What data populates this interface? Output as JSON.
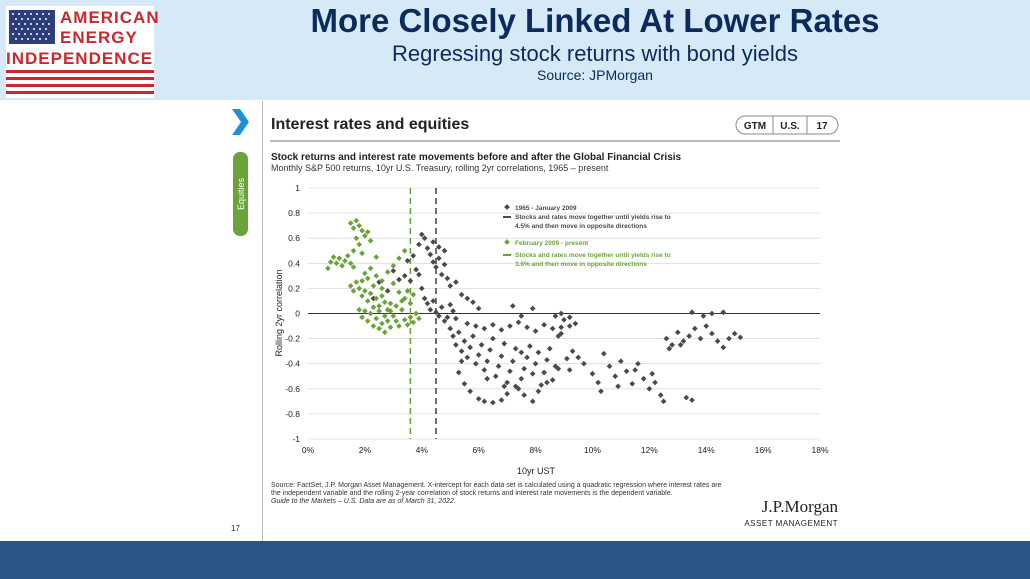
{
  "header": {
    "logo_line1": "AMERICAN",
    "logo_line2": "ENERGY",
    "logo_line3": "INDEPENDENCE",
    "title": "More Closely Linked At Lower Rates",
    "subtitle": "Regressing stock returns with bond yields",
    "source": "Source: JPMorgan"
  },
  "slide": {
    "heading": "Interest rates and equities",
    "tags": [
      "GTM",
      "U.S.",
      "17"
    ],
    "side_tab": "Equities",
    "chart_title": "Stock returns and interest rate movements before and after the Global Financial Crisis",
    "chart_subtitle": "Monthly S&P 500 returns, 10yr U.S. Treasury, rolling 2yr correlations, 1965 – present",
    "footnote1": "Source: FactSet, J.P. Morgan Asset Management. X-intercept for each data set is calculated using a quadratic regression where interest rates are",
    "footnote2": "the independent variable and the rolling 2-year correlation of stock returns and interest rate movements is the dependent variable.",
    "footnote3": "Guide to the Markets – U.S. Data are as of March 31, 2022.",
    "page_number": "17",
    "brand1": "J.P.Morgan",
    "brand2": "ASSET MANAGEMENT"
  },
  "colors": {
    "grey_series": "#4a4a4a",
    "green_series": "#6aa33a",
    "header_bg": "#d6e9f7",
    "title_color": "#0d2a5c",
    "footer_band": "#2a5686",
    "logo_red": "#c8282f",
    "chevron": "#1f8fd6"
  },
  "chart_data": {
    "type": "scatter",
    "xlabel": "10yr UST",
    "ylabel": "Rolling 2yr correlation",
    "xlim": [
      0,
      18
    ],
    "ylim": [
      -1,
      1
    ],
    "x_ticks": [
      "0%",
      "2%",
      "4%",
      "6%",
      "8%",
      "10%",
      "12%",
      "14%",
      "16%",
      "18%"
    ],
    "y_ticks": [
      "1",
      "0.8",
      "0.6",
      "0.4",
      "0.2",
      "0",
      "-0.2",
      "-0.4",
      "-0.6",
      "-0.8",
      "-1"
    ],
    "grid": true,
    "legend_position": "top-right",
    "vlines": [
      {
        "x": 3.6,
        "series": "February 2009 - present"
      },
      {
        "x": 4.5,
        "series": "1965 - January 2009"
      }
    ],
    "series": [
      {
        "name": "1965 - January 2009",
        "line_label_1": "Stocks and rates move together until yields rise to",
        "line_label_2": "4.5% and then move in opposite directions",
        "color": "#4a4a4a",
        "points": [
          [
            2.3,
            0.12
          ],
          [
            2.5,
            0.25
          ],
          [
            2.8,
            0.18
          ],
          [
            3.0,
            0.34
          ],
          [
            3.2,
            0.27
          ],
          [
            3.4,
            0.3
          ],
          [
            3.5,
            0.42
          ],
          [
            3.7,
            0.46
          ],
          [
            3.9,
            0.55
          ],
          [
            4.0,
            0.63
          ],
          [
            4.1,
            0.6
          ],
          [
            4.2,
            0.52
          ],
          [
            4.3,
            0.47
          ],
          [
            4.4,
            0.41
          ],
          [
            4.5,
            0.37
          ],
          [
            4.6,
            0.44
          ],
          [
            4.7,
            0.31
          ],
          [
            4.8,
            0.39
          ],
          [
            4.9,
            0.28
          ],
          [
            5.0,
            0.22
          ],
          [
            3.8,
            0.35
          ],
          [
            4.0,
            0.2
          ],
          [
            4.1,
            0.12
          ],
          [
            4.2,
            0.08
          ],
          [
            4.3,
            0.03
          ],
          [
            4.4,
            0.1
          ],
          [
            4.5,
            0.01
          ],
          [
            4.6,
            -0.02
          ],
          [
            4.7,
            0.05
          ],
          [
            4.8,
            -0.06
          ],
          [
            4.9,
            -0.03
          ],
          [
            5.0,
            0.07
          ],
          [
            5.1,
            0.02
          ],
          [
            5.2,
            -0.04
          ],
          [
            4.4,
            0.57
          ],
          [
            4.6,
            0.53
          ],
          [
            4.8,
            0.5
          ],
          [
            5.2,
            0.25
          ],
          [
            5.4,
            0.15
          ],
          [
            5.6,
            0.12
          ],
          [
            5.8,
            0.09
          ],
          [
            6.0,
            0.04
          ],
          [
            3.6,
            0.26
          ],
          [
            3.9,
            0.31
          ],
          [
            5.0,
            -0.12
          ],
          [
            5.1,
            -0.18
          ],
          [
            5.2,
            -0.25
          ],
          [
            5.3,
            -0.15
          ],
          [
            5.4,
            -0.3
          ],
          [
            5.5,
            -0.22
          ],
          [
            5.6,
            -0.35
          ],
          [
            5.7,
            -0.27
          ],
          [
            5.8,
            -0.18
          ],
          [
            5.9,
            -0.4
          ],
          [
            6.0,
            -0.33
          ],
          [
            6.1,
            -0.25
          ],
          [
            6.2,
            -0.45
          ],
          [
            6.3,
            -0.38
          ],
          [
            6.4,
            -0.29
          ],
          [
            6.5,
            -0.2
          ],
          [
            6.6,
            -0.5
          ],
          [
            6.7,
            -0.42
          ],
          [
            6.8,
            -0.34
          ],
          [
            6.9,
            -0.24
          ],
          [
            7.0,
            -0.55
          ],
          [
            7.1,
            -0.46
          ],
          [
            7.2,
            -0.38
          ],
          [
            7.3,
            -0.28
          ],
          [
            7.4,
            -0.6
          ],
          [
            7.5,
            -0.52
          ],
          [
            7.6,
            -0.44
          ],
          [
            7.7,
            -0.35
          ],
          [
            7.8,
            -0.26
          ],
          [
            7.9,
            -0.48
          ],
          [
            8.0,
            -0.4
          ],
          [
            8.1,
            -0.31
          ],
          [
            8.2,
            -0.57
          ],
          [
            8.3,
            -0.47
          ],
          [
            8.4,
            -0.37
          ],
          [
            8.5,
            -0.28
          ],
          [
            8.6,
            -0.53
          ],
          [
            8.7,
            -0.42
          ],
          [
            8.8,
            -0.18
          ],
          [
            8.9,
            -0.11
          ],
          [
            9.0,
            -0.05
          ],
          [
            9.1,
            -0.36
          ],
          [
            9.2,
            -0.45
          ],
          [
            9.3,
            -0.3
          ],
          [
            5.3,
            -0.47
          ],
          [
            5.5,
            -0.56
          ],
          [
            5.7,
            -0.62
          ],
          [
            6.0,
            -0.68
          ],
          [
            6.2,
            -0.7
          ],
          [
            6.5,
            -0.71
          ],
          [
            6.8,
            -0.69
          ],
          [
            7.0,
            -0.64
          ],
          [
            7.3,
            -0.58
          ],
          [
            7.6,
            -0.65
          ],
          [
            7.9,
            -0.7
          ],
          [
            8.1,
            -0.62
          ],
          [
            8.4,
            -0.55
          ],
          [
            5.6,
            -0.08
          ],
          [
            5.9,
            -0.1
          ],
          [
            6.2,
            -0.12
          ],
          [
            6.5,
            -0.09
          ],
          [
            6.8,
            -0.13
          ],
          [
            7.1,
            -0.1
          ],
          [
            7.4,
            -0.07
          ],
          [
            7.7,
            -0.11
          ],
          [
            8.0,
            -0.14
          ],
          [
            8.3,
            -0.09
          ],
          [
            8.6,
            -0.12
          ],
          [
            8.9,
            -0.16
          ],
          [
            9.2,
            -0.1
          ],
          [
            8.7,
            -0.02
          ],
          [
            8.9,
            0.0
          ],
          [
            9.2,
            -0.03
          ],
          [
            9.4,
            -0.08
          ],
          [
            7.2,
            0.06
          ],
          [
            7.5,
            -0.02
          ],
          [
            7.9,
            0.04
          ],
          [
            5.4,
            -0.38
          ],
          [
            6.3,
            -0.52
          ],
          [
            6.9,
            -0.58
          ],
          [
            7.5,
            -0.31
          ],
          [
            8.8,
            -0.44
          ],
          [
            9.5,
            -0.35
          ],
          [
            9.7,
            -0.4
          ],
          [
            10.0,
            -0.48
          ],
          [
            10.2,
            -0.55
          ],
          [
            10.4,
            -0.32
          ],
          [
            10.6,
            -0.42
          ],
          [
            10.8,
            -0.5
          ],
          [
            11.0,
            -0.38
          ],
          [
            11.2,
            -0.46
          ],
          [
            11.4,
            -0.56
          ],
          [
            11.6,
            -0.4
          ],
          [
            11.8,
            -0.52
          ],
          [
            12.0,
            -0.6
          ],
          [
            12.2,
            -0.55
          ],
          [
            12.4,
            -0.65
          ],
          [
            12.5,
            -0.7
          ],
          [
            10.3,
            -0.62
          ],
          [
            10.9,
            -0.58
          ],
          [
            11.5,
            -0.45
          ],
          [
            12.1,
            -0.48
          ],
          [
            12.6,
            -0.2
          ],
          [
            12.8,
            -0.25
          ],
          [
            13.0,
            -0.15
          ],
          [
            13.2,
            -0.22
          ],
          [
            13.4,
            -0.18
          ],
          [
            13.6,
            -0.12
          ],
          [
            13.8,
            -0.2
          ],
          [
            14.0,
            -0.1
          ],
          [
            14.2,
            -0.16
          ],
          [
            14.4,
            -0.22
          ],
          [
            14.6,
            -0.27
          ],
          [
            14.8,
            -0.2
          ],
          [
            15.0,
            -0.16
          ],
          [
            15.2,
            -0.19
          ],
          [
            13.5,
            0.01
          ],
          [
            13.9,
            -0.02
          ],
          [
            14.2,
            0.0
          ],
          [
            14.6,
            0.01
          ],
          [
            13.3,
            -0.67
          ],
          [
            13.5,
            -0.69
          ],
          [
            12.7,
            -0.28
          ],
          [
            13.1,
            -0.25
          ]
        ]
      },
      {
        "name": "February 2009 - present",
        "line_label_1": "Stocks and rates move together until yields rise to",
        "line_label_2": "3.6% and then move in opposite directions",
        "color": "#6aa33a",
        "points": [
          [
            0.7,
            0.36
          ],
          [
            0.8,
            0.41
          ],
          [
            0.9,
            0.45
          ],
          [
            1.0,
            0.4
          ],
          [
            1.1,
            0.44
          ],
          [
            1.2,
            0.38
          ],
          [
            1.3,
            0.42
          ],
          [
            1.4,
            0.46
          ],
          [
            1.5,
            0.4
          ],
          [
            1.6,
            0.37
          ],
          [
            1.5,
            0.72
          ],
          [
            1.6,
            0.68
          ],
          [
            1.7,
            0.74
          ],
          [
            1.8,
            0.7
          ],
          [
            1.9,
            0.66
          ],
          [
            2.0,
            0.62
          ],
          [
            2.1,
            0.65
          ],
          [
            1.7,
            0.6
          ],
          [
            1.8,
            0.55
          ],
          [
            1.6,
            0.5
          ],
          [
            2.2,
            0.58
          ],
          [
            1.5,
            0.22
          ],
          [
            1.6,
            0.18
          ],
          [
            1.7,
            0.25
          ],
          [
            1.8,
            0.2
          ],
          [
            1.9,
            0.14
          ],
          [
            2.0,
            0.18
          ],
          [
            2.1,
            0.1
          ],
          [
            2.2,
            0.16
          ],
          [
            2.3,
            0.22
          ],
          [
            2.4,
            0.12
          ],
          [
            2.5,
            0.06
          ],
          [
            2.6,
            0.14
          ],
          [
            2.7,
            0.09
          ],
          [
            2.8,
            0.03
          ],
          [
            2.9,
            0.08
          ],
          [
            1.8,
            0.03
          ],
          [
            1.9,
            -0.03
          ],
          [
            2.0,
            0.02
          ],
          [
            2.1,
            -0.06
          ],
          [
            2.2,
            0.0
          ],
          [
            2.3,
            -0.1
          ],
          [
            2.4,
            -0.04
          ],
          [
            2.5,
            -0.12
          ],
          [
            2.6,
            -0.08
          ],
          [
            2.7,
            -0.15
          ],
          [
            2.8,
            -0.06
          ],
          [
            2.9,
            -0.11
          ],
          [
            3.0,
            -0.02
          ],
          [
            3.1,
            -0.06
          ],
          [
            3.2,
            -0.1
          ],
          [
            3.3,
            0.03
          ],
          [
            3.4,
            -0.05
          ],
          [
            3.5,
            -0.09
          ],
          [
            3.6,
            -0.03
          ],
          [
            3.7,
            -0.07
          ],
          [
            3.8,
            0.0
          ],
          [
            3.9,
            -0.04
          ],
          [
            2.0,
            0.32
          ],
          [
            2.2,
            0.36
          ],
          [
            2.4,
            0.3
          ],
          [
            2.6,
            0.26
          ],
          [
            2.8,
            0.33
          ],
          [
            3.0,
            0.38
          ],
          [
            3.2,
            0.44
          ],
          [
            3.4,
            0.5
          ],
          [
            3.0,
            0.24
          ],
          [
            3.2,
            0.17
          ],
          [
            3.4,
            0.12
          ],
          [
            3.6,
            0.08
          ],
          [
            1.9,
            0.26
          ],
          [
            2.1,
            0.28
          ],
          [
            2.3,
            0.05
          ],
          [
            2.5,
            0.02
          ],
          [
            2.7,
            -0.02
          ],
          [
            2.9,
            0.02
          ],
          [
            3.1,
            0.06
          ],
          [
            3.3,
            0.1
          ],
          [
            3.5,
            0.18
          ],
          [
            3.7,
            0.15
          ],
          [
            2.4,
            0.45
          ],
          [
            2.6,
            0.2
          ],
          [
            1.9,
            0.48
          ]
        ]
      }
    ]
  }
}
